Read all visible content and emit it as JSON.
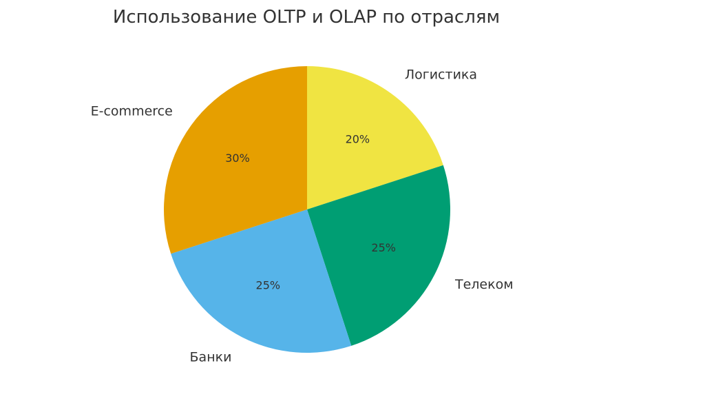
{
  "chart_data": {
    "type": "pie",
    "title": "Использование OLTP и OLAP по отраслям",
    "start_angle_deg": 90,
    "direction": "clockwise",
    "slices": [
      {
        "label": "Логистика",
        "value": 20,
        "pct_label": "20%",
        "color": "#F0E442"
      },
      {
        "label": "Телеком",
        "value": 25,
        "pct_label": "25%",
        "color": "#009E73"
      },
      {
        "label": "Банки",
        "value": 25,
        "pct_label": "25%",
        "color": "#56B4E9"
      },
      {
        "label": "E-commerce",
        "value": 30,
        "pct_label": "30%",
        "color": "#E69F00"
      }
    ]
  }
}
